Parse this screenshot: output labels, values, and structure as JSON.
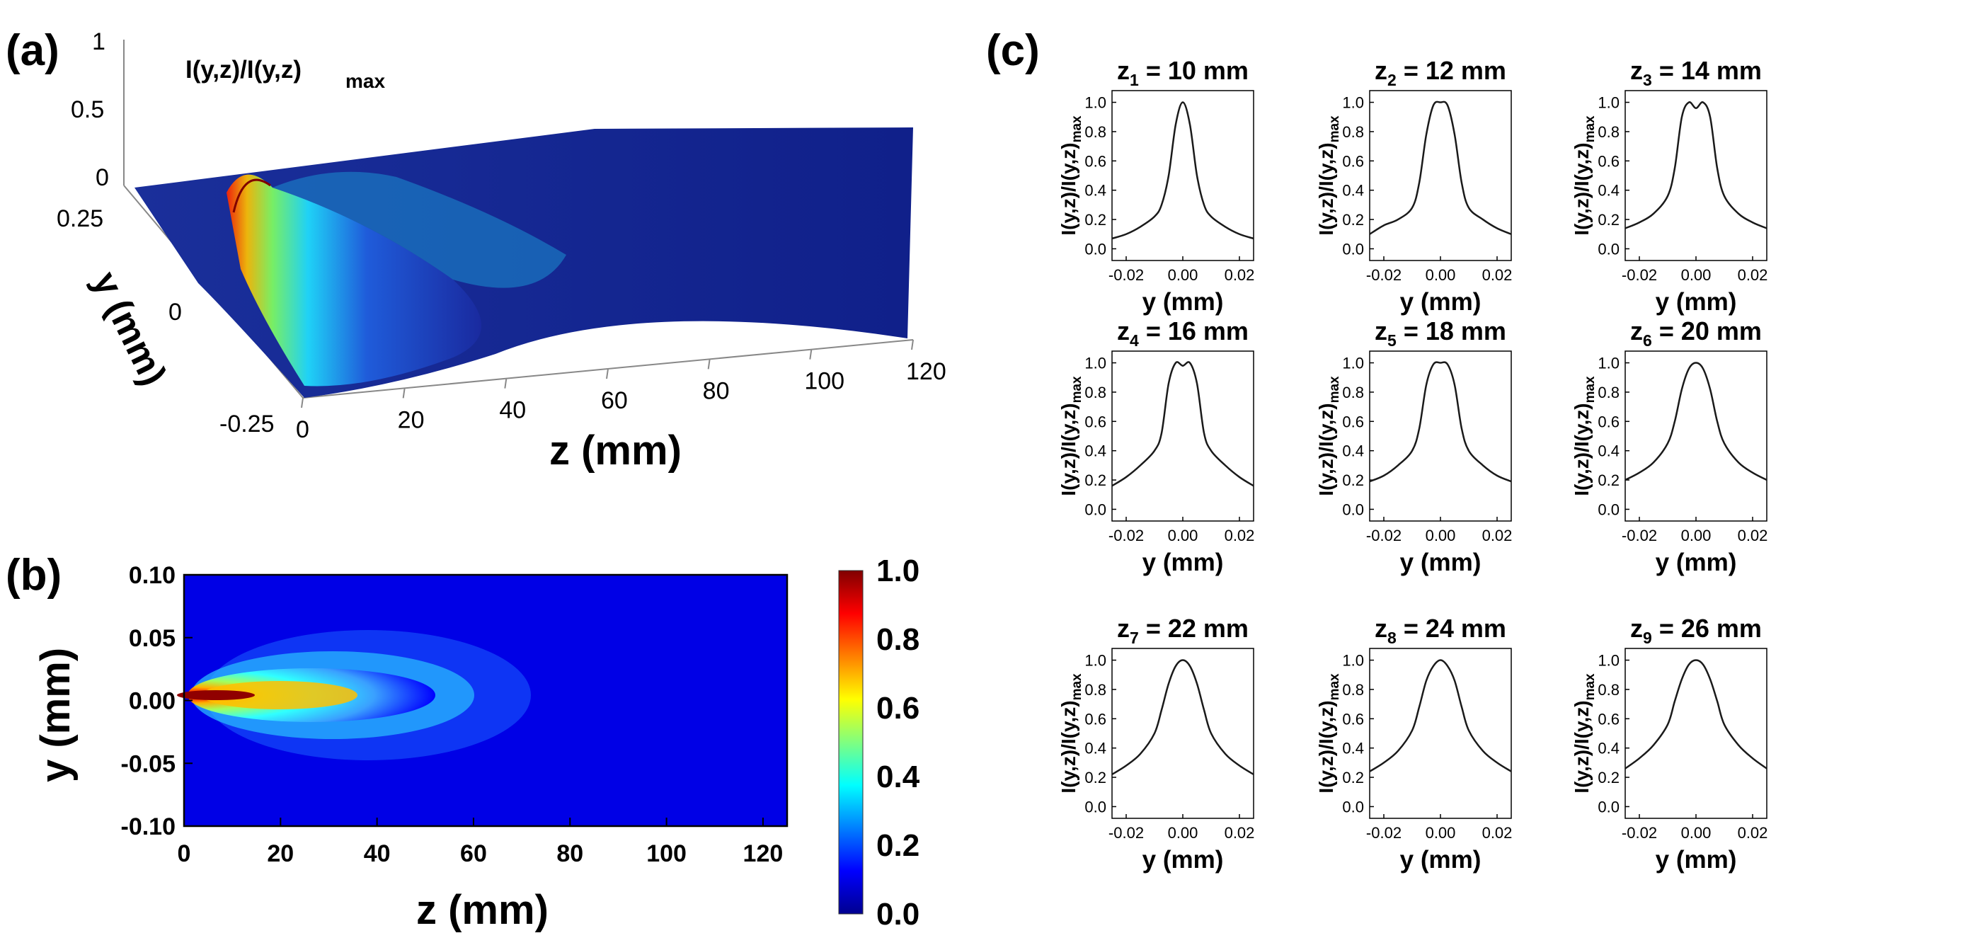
{
  "chart_data": [
    {
      "panel": "(a)",
      "type": "surface3d",
      "title": "I(y,z)/I(y,z)max",
      "z_axis_label": "I(y,z)/I(y,z)max",
      "vertical_ticks": [
        "1",
        "0.5",
        "0"
      ],
      "y_ticks": [
        "0.25",
        "0",
        "-0.25"
      ],
      "z_ticks": [
        "0",
        "20",
        "40",
        "60",
        "80",
        "100",
        "120"
      ],
      "ylabel": "y (mm)",
      "xlabel": "z (mm)",
      "ylim": [
        -0.25,
        0.25
      ],
      "xlim": [
        0,
        120
      ],
      "peak": {
        "z": 5,
        "y": 0,
        "value": 1.0
      }
    },
    {
      "panel": "(b)",
      "type": "heatmap",
      "xlabel": "z (mm)",
      "ylabel": "y (mm)",
      "x_ticks": [
        "0",
        "20",
        "40",
        "60",
        "80",
        "100",
        "120"
      ],
      "y_ticks": [
        "0.10",
        "0.05",
        "0.00",
        "-0.05",
        "-0.10"
      ],
      "xlim": [
        0,
        125
      ],
      "ylim": [
        -0.1,
        0.1
      ],
      "colorbar_ticks": [
        "1.0",
        "0.8",
        "0.6",
        "0.4",
        "0.2",
        "0.0"
      ],
      "colorbar_range": [
        0,
        1
      ]
    },
    {
      "panel": "(c)",
      "type": "line",
      "xlabel": "y (mm)",
      "ylabel_main": "I(y,z)/I(y,z)",
      "ylabel_sub": "max",
      "x_ticks": [
        "-0.02",
        "0.00",
        "0.02"
      ],
      "y_ticks": [
        "0.0",
        "0.2",
        "0.4",
        "0.6",
        "0.8",
        "1.0"
      ],
      "xlim": [
        -0.025,
        0.025
      ],
      "ylim": [
        -0.08,
        1.08
      ],
      "x": [
        -0.025,
        -0.02,
        -0.015,
        -0.01,
        -0.0075,
        -0.005,
        -0.0025,
        0,
        0.0025,
        0.005,
        0.0075,
        0.01,
        0.015,
        0.02,
        0.025
      ],
      "series": [
        {
          "name": "z1",
          "sub": "1",
          "label": "= 10 mm",
          "values": [
            0.07,
            0.1,
            0.15,
            0.22,
            0.3,
            0.5,
            0.85,
            1.0,
            0.85,
            0.5,
            0.3,
            0.22,
            0.15,
            0.1,
            0.07
          ]
        },
        {
          "name": "z2",
          "sub": "2",
          "label": "= 12 mm",
          "values": [
            0.1,
            0.16,
            0.2,
            0.28,
            0.45,
            0.78,
            0.98,
            1.0,
            0.98,
            0.78,
            0.45,
            0.28,
            0.2,
            0.14,
            0.1
          ]
        },
        {
          "name": "z3",
          "sub": "3",
          "label": "= 14 mm",
          "values": [
            0.14,
            0.18,
            0.24,
            0.36,
            0.55,
            0.9,
            1.0,
            0.96,
            1.0,
            0.9,
            0.55,
            0.36,
            0.24,
            0.18,
            0.14
          ]
        },
        {
          "name": "z4",
          "sub": "4",
          "label": "= 16 mm",
          "values": [
            0.16,
            0.22,
            0.3,
            0.4,
            0.52,
            0.86,
            1.0,
            0.98,
            1.0,
            0.86,
            0.52,
            0.4,
            0.3,
            0.22,
            0.16
          ]
        },
        {
          "name": "z5",
          "sub": "5",
          "label": "= 18 mm",
          "values": [
            0.19,
            0.23,
            0.3,
            0.4,
            0.55,
            0.85,
            0.99,
            1.0,
            0.99,
            0.85,
            0.55,
            0.4,
            0.3,
            0.23,
            0.19
          ]
        },
        {
          "name": "z6",
          "sub": "6",
          "label": "= 20 mm",
          "values": [
            0.2,
            0.25,
            0.32,
            0.45,
            0.6,
            0.82,
            0.96,
            1.0,
            0.96,
            0.82,
            0.6,
            0.45,
            0.32,
            0.25,
            0.2
          ]
        },
        {
          "name": "z7",
          "sub": "7",
          "label": "= 22 mm",
          "values": [
            0.22,
            0.28,
            0.36,
            0.5,
            0.66,
            0.84,
            0.96,
            1.0,
            0.96,
            0.84,
            0.66,
            0.5,
            0.36,
            0.28,
            0.22
          ]
        },
        {
          "name": "z8",
          "sub": "8",
          "label": "= 24 mm",
          "values": [
            0.24,
            0.3,
            0.38,
            0.52,
            0.68,
            0.86,
            0.96,
            1.0,
            0.96,
            0.86,
            0.68,
            0.52,
            0.38,
            0.3,
            0.24
          ]
        },
        {
          "name": "z9",
          "sub": "9",
          "label": "= 26 mm",
          "values": [
            0.26,
            0.33,
            0.42,
            0.56,
            0.72,
            0.87,
            0.97,
            1.0,
            0.97,
            0.87,
            0.72,
            0.56,
            0.42,
            0.33,
            0.26
          ]
        }
      ]
    }
  ],
  "labels": {
    "panel_a": "(a)",
    "panel_b": "(b)",
    "panel_c": "(c)"
  },
  "colors": {
    "line": "#1a1a1a",
    "background": "#ffffff",
    "low": "#00008f",
    "high": "#800000"
  }
}
